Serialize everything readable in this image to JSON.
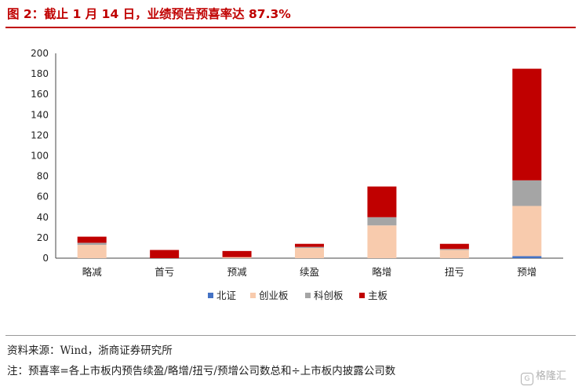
{
  "header": {
    "title": "图 2：截止 1 月 14 日，业绩预告预喜率达 87.3%"
  },
  "footer": {
    "source": "资料来源：Wind，浙商证券研究所",
    "note": "注：预喜率=各上市板内预告续盈/略增/扭亏/预增公司数总和÷上市板内披露公司数",
    "watermark": "格隆汇"
  },
  "chart_data": {
    "type": "bar",
    "stacked": true,
    "categories": [
      "略减",
      "首亏",
      "预减",
      "续盈",
      "略增",
      "扭亏",
      "预增"
    ],
    "series": [
      {
        "name": "北证",
        "color": "#4472c4",
        "values": [
          0,
          0,
          0,
          0,
          0,
          0,
          2
        ]
      },
      {
        "name": "创业板",
        "color": "#f8cbad",
        "values": [
          13,
          0,
          1,
          10,
          32,
          8,
          49
        ]
      },
      {
        "name": "科创板",
        "color": "#a5a5a5",
        "values": [
          2,
          0,
          0,
          1,
          8,
          1,
          25
        ]
      },
      {
        "name": "主板",
        "color": "#c00000",
        "values": [
          6,
          8,
          6,
          3,
          30,
          5,
          109
        ]
      }
    ],
    "ylim": [
      0,
      200
    ],
    "yticks": [
      "0",
      "20",
      "40",
      "60",
      "80",
      "100",
      "120",
      "140",
      "160",
      "180",
      "200"
    ],
    "grid": false,
    "legend_position": "bottom"
  }
}
